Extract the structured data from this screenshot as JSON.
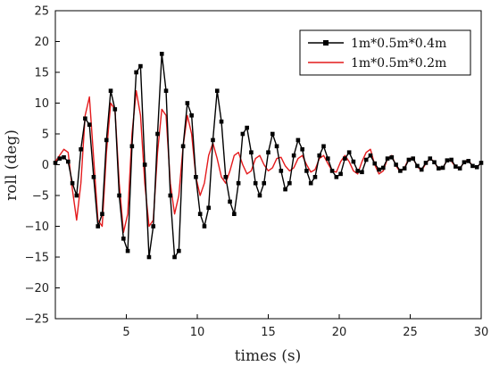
{
  "chart_data": {
    "type": "line",
    "title": "",
    "xlabel": "times (s)",
    "ylabel": "roll (deg)",
    "xlim": [
      0,
      30
    ],
    "ylim": [
      -25,
      25
    ],
    "xticks": [
      5,
      10,
      15,
      20,
      25,
      30
    ],
    "yticks": [
      -25,
      -20,
      -15,
      -10,
      -5,
      0,
      5,
      10,
      15,
      20,
      25
    ],
    "grid": false,
    "legend_position": "top-right",
    "series": [
      {
        "name": "1m*0.5m*0.4m",
        "color": "#000000",
        "marker": "square",
        "x": [
          0.0,
          0.3,
          0.6,
          0.9,
          1.2,
          1.5,
          1.8,
          2.1,
          2.4,
          2.7,
          3.0,
          3.3,
          3.6,
          3.9,
          4.2,
          4.5,
          4.8,
          5.1,
          5.4,
          5.7,
          6.0,
          6.3,
          6.6,
          6.9,
          7.2,
          7.5,
          7.8,
          8.1,
          8.4,
          8.7,
          9.0,
          9.3,
          9.6,
          9.9,
          10.2,
          10.5,
          10.8,
          11.1,
          11.4,
          11.7,
          12.0,
          12.3,
          12.6,
          12.9,
          13.2,
          13.5,
          13.8,
          14.1,
          14.4,
          14.7,
          15.0,
          15.3,
          15.6,
          15.9,
          16.2,
          16.5,
          16.8,
          17.1,
          17.4,
          17.7,
          18.0,
          18.3,
          18.6,
          18.9,
          19.2,
          19.5,
          19.8,
          20.1,
          20.4,
          20.7,
          21.0,
          21.3,
          21.6,
          21.9,
          22.2,
          22.5,
          22.8,
          23.1,
          23.4,
          23.7,
          24.0,
          24.3,
          24.6,
          24.9,
          25.2,
          25.5,
          25.8,
          26.1,
          26.4,
          26.7,
          27.0,
          27.3,
          27.6,
          27.9,
          28.2,
          28.5,
          28.8,
          29.1,
          29.4,
          29.7,
          30.0
        ],
        "y": [
          0.3,
          1.0,
          1.2,
          0.5,
          -3.0,
          -5.0,
          2.5,
          7.5,
          6.5,
          -2.0,
          -10.0,
          -8.0,
          4.0,
          12.0,
          9.0,
          -5.0,
          -12.0,
          -14.0,
          3.0,
          15.0,
          16.0,
          0.0,
          -15.0,
          -10.0,
          5.0,
          18.0,
          12.0,
          -5.0,
          -15.0,
          -14.0,
          3.0,
          10.0,
          8.0,
          -2.0,
          -8.0,
          -10.0,
          -7.0,
          4.0,
          12.0,
          7.0,
          -2.0,
          -6.0,
          -8.0,
          -3.0,
          5.0,
          6.0,
          2.0,
          -3.0,
          -5.0,
          -3.0,
          2.0,
          5.0,
          3.0,
          -1.0,
          -4.0,
          -3.0,
          1.5,
          4.0,
          2.5,
          -1.0,
          -3.0,
          -2.0,
          1.5,
          3.0,
          1.0,
          -1.0,
          -2.0,
          -1.5,
          1.0,
          2.0,
          0.5,
          -1.0,
          -1.2,
          0.8,
          1.5,
          0.2,
          -0.8,
          -0.5,
          1.0,
          1.2,
          0.0,
          -1.0,
          -0.6,
          0.8,
          1.0,
          -0.2,
          -0.8,
          0.3,
          1.0,
          0.4,
          -0.6,
          -0.5,
          0.7,
          0.8,
          -0.3,
          -0.6,
          0.4,
          0.6,
          -0.2,
          -0.4,
          0.3
        ],
        "_note_x": "",
        "_note_y": ""
      },
      {
        "name": "1m*0.5m*0.2m",
        "color": "#e41a1c",
        "marker": "none",
        "x": [
          0.0,
          0.3,
          0.6,
          0.9,
          1.2,
          1.5,
          1.8,
          2.1,
          2.4,
          2.7,
          3.0,
          3.3,
          3.6,
          3.9,
          4.2,
          4.5,
          4.8,
          5.1,
          5.4,
          5.7,
          6.0,
          6.3,
          6.6,
          6.9,
          7.2,
          7.5,
          7.8,
          8.1,
          8.4,
          8.7,
          9.0,
          9.3,
          9.6,
          9.9,
          10.2,
          10.5,
          10.8,
          11.1,
          11.4,
          11.7,
          12.0,
          12.3,
          12.6,
          12.9,
          13.2,
          13.5,
          13.8,
          14.1,
          14.4,
          14.7,
          15.0,
          15.3,
          15.6,
          15.9,
          16.2,
          16.5,
          16.8,
          17.1,
          17.4,
          17.7,
          18.0,
          18.3,
          18.6,
          18.9,
          19.2,
          19.5,
          19.8,
          20.1,
          20.4,
          20.7,
          21.0,
          21.3,
          21.6,
          21.9,
          22.2,
          22.5,
          22.8,
          23.1,
          23.4,
          23.7,
          24.0,
          24.3,
          24.6,
          24.9,
          25.2,
          25.5,
          25.8,
          26.1,
          26.4,
          26.7,
          27.0,
          27.3,
          27.6,
          27.9,
          28.2,
          28.5,
          28.8,
          29.1,
          29.4,
          29.7,
          30.0
        ],
        "y": [
          0.5,
          1.5,
          2.5,
          2.0,
          -4.0,
          -9.0,
          -3.0,
          8.0,
          11.0,
          1.0,
          -9.0,
          -10.0,
          2.0,
          10.0,
          9.0,
          -3.0,
          -11.0,
          -8.0,
          5.0,
          12.0,
          8.0,
          -3.0,
          -10.0,
          -9.0,
          2.0,
          9.0,
          8.0,
          -3.0,
          -8.0,
          -5.0,
          3.0,
          8.0,
          5.0,
          -2.0,
          -5.0,
          -3.0,
          1.5,
          3.5,
          1.0,
          -2.0,
          -3.0,
          -1.0,
          1.5,
          2.0,
          0.0,
          -1.5,
          -1.0,
          1.0,
          1.5,
          0.0,
          -1.0,
          -0.5,
          1.0,
          1.2,
          -0.2,
          -1.0,
          -0.5,
          1.0,
          1.5,
          0.0,
          -1.2,
          -0.8,
          1.0,
          1.5,
          0.2,
          -1.0,
          -1.2,
          0.5,
          1.5,
          0.5,
          -1.0,
          -1.5,
          0.5,
          2.0,
          2.5,
          0.0,
          -1.5,
          -1.0,
          1.0,
          1.5,
          -0.2,
          -1.2,
          -0.5,
          1.0,
          1.0,
          -0.3,
          -1.0,
          0.2,
          1.0,
          0.5,
          -0.8,
          -0.6,
          0.8,
          0.6,
          -0.4,
          -0.7,
          0.5,
          0.8,
          -0.3,
          -0.5,
          0.4
        ]
      }
    ]
  }
}
